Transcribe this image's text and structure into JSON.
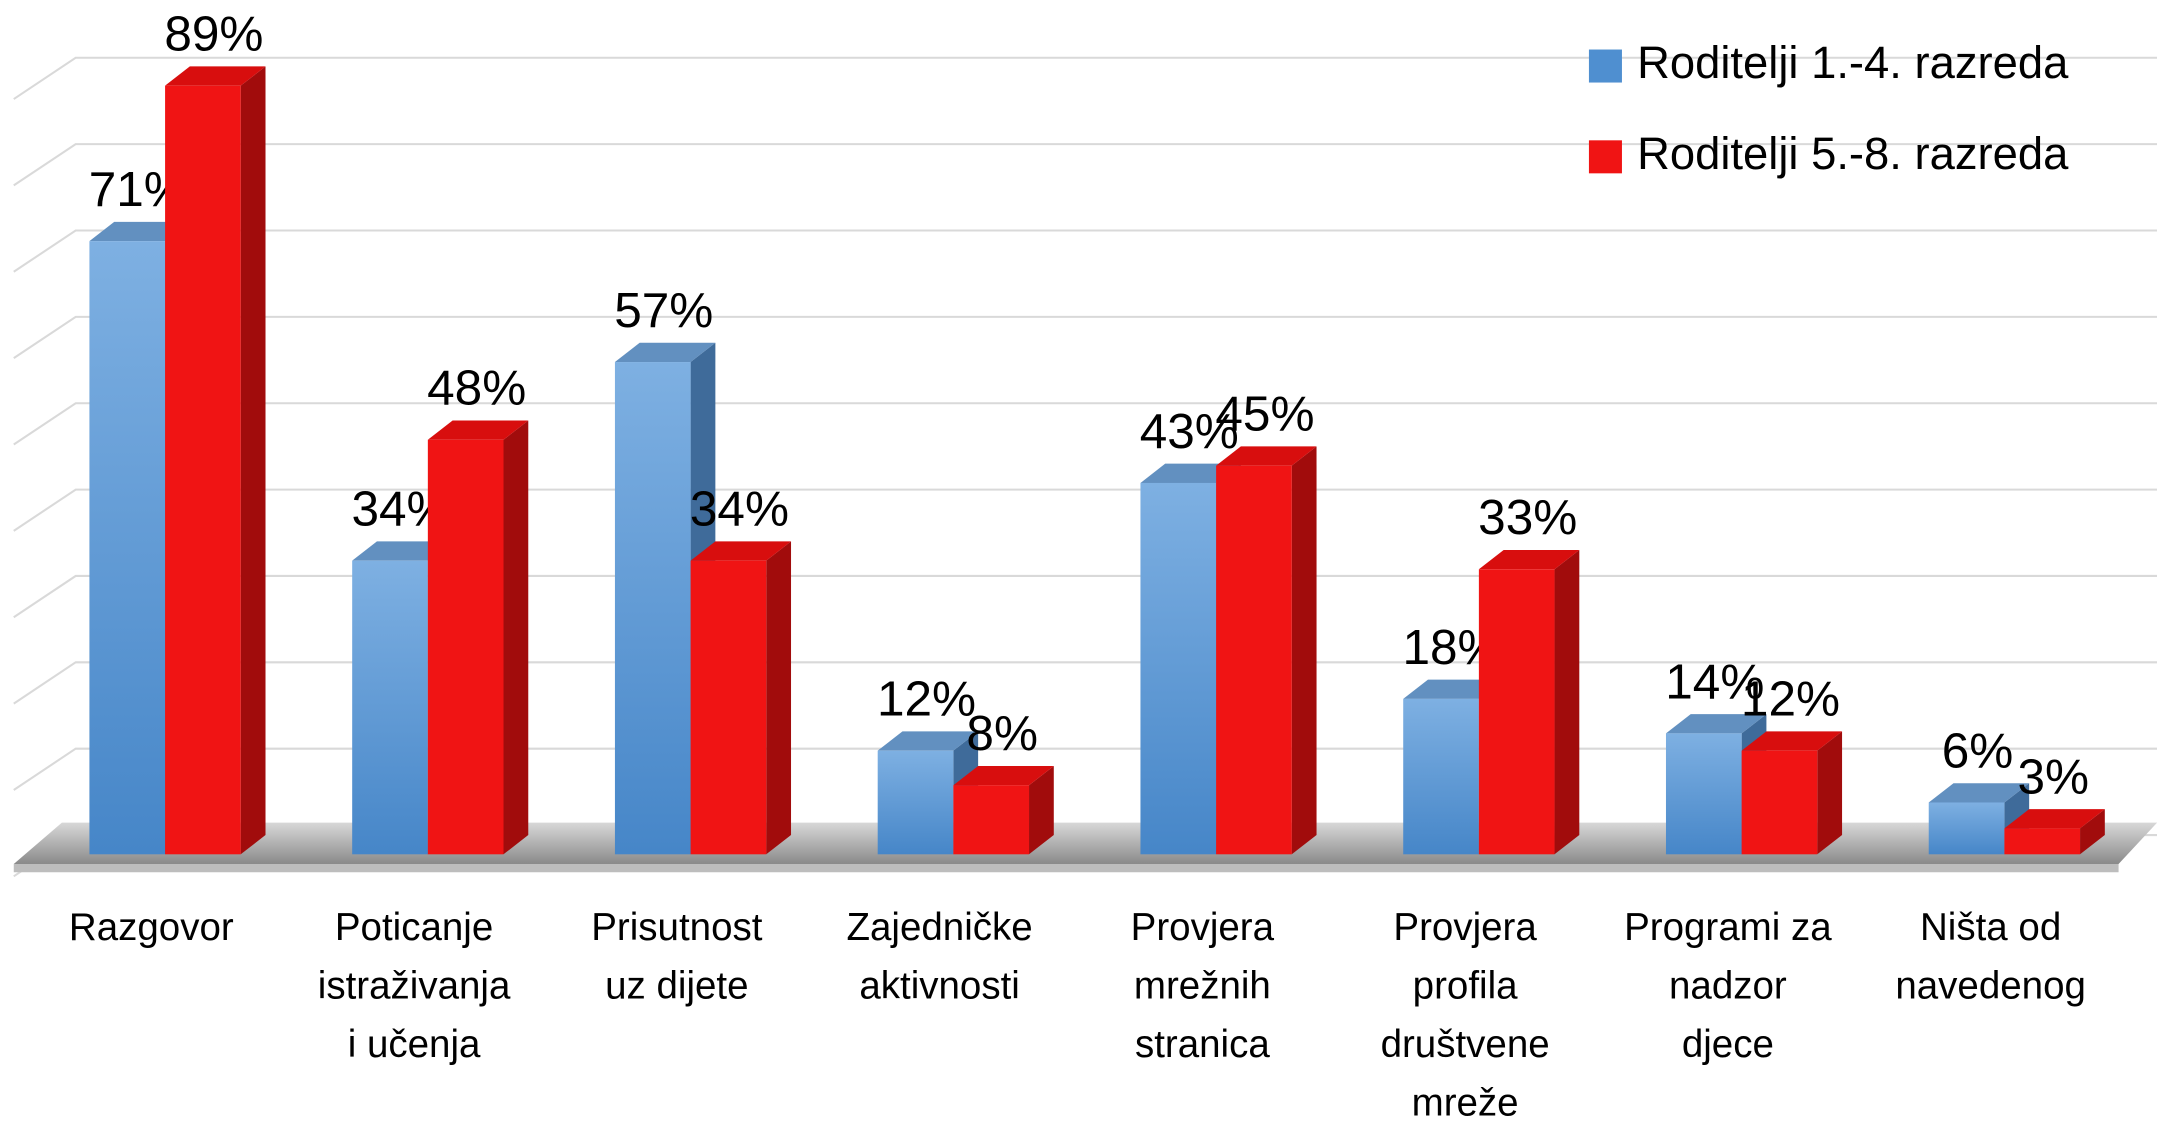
{
  "chart_data": {
    "type": "bar3d",
    "categories": [
      "Razgovor",
      "Poticanje\nistraživanja\ni učenja",
      "Prisutnost\nuz dijete",
      "Zajedničke\naktivnosti",
      "Provjera\nmrežnih\nstranica",
      "Provjera\nprofila\ndruštvene\nmreže",
      "Programi za\nnadzor\ndjece",
      "Ništa od\nnavedenog"
    ],
    "series": [
      {
        "name": "Roditelji 1.-4. razreda",
        "color": "#4f8fd0",
        "values": [
          71,
          34,
          57,
          12,
          43,
          18,
          14,
          6
        ],
        "value_labels": [
          "71%",
          "34%",
          "57%",
          "12%",
          "43%",
          "18%",
          "14%",
          "6%"
        ]
      },
      {
        "name": "Roditelji 5.-8. razreda",
        "color": "#f01414",
        "values": [
          89,
          48,
          34,
          8,
          45,
          33,
          12,
          3
        ],
        "value_labels": [
          "89%",
          "48%",
          "34%",
          "8%",
          "45%",
          "33%",
          "12%",
          "3%"
        ]
      }
    ],
    "ylim": [
      0,
      90
    ],
    "yticks": [
      0,
      10,
      20,
      30,
      40,
      50,
      60,
      70,
      80,
      90
    ],
    "grid": true,
    "legend": "top-right"
  }
}
